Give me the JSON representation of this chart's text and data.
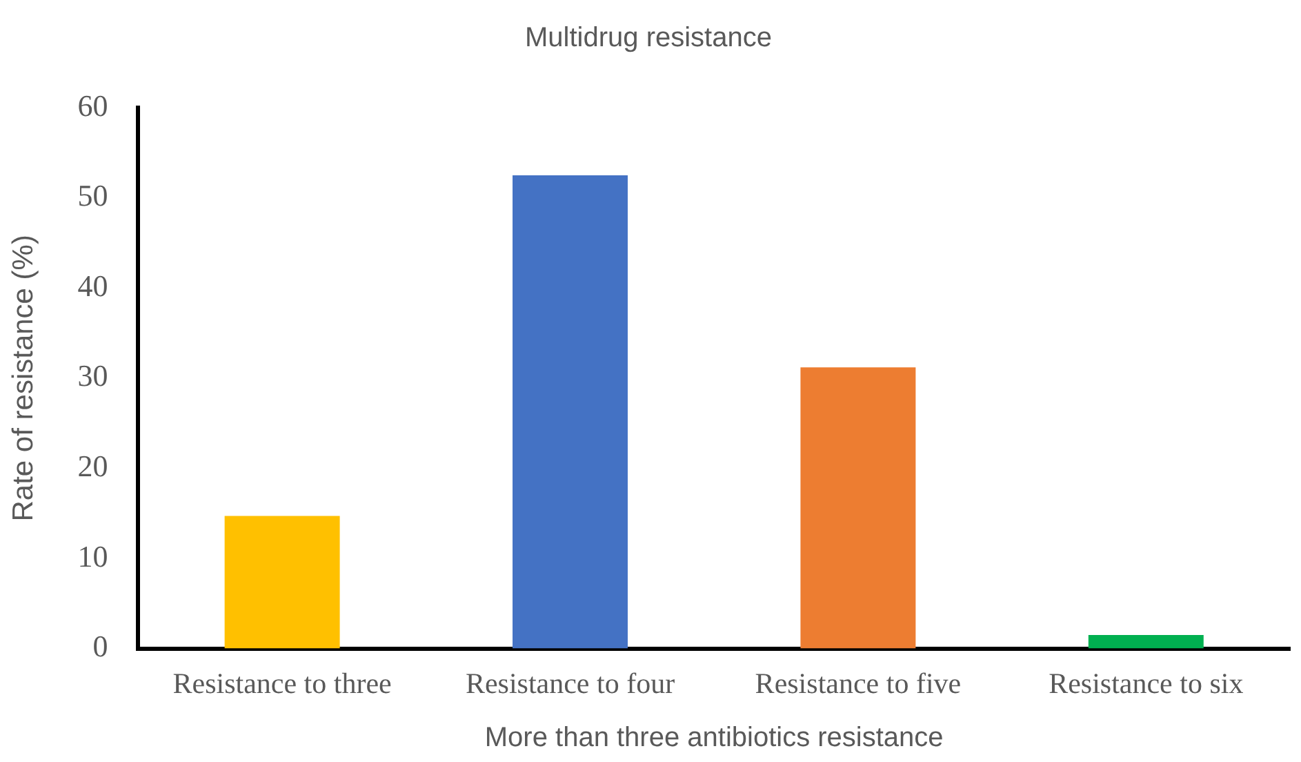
{
  "chart_data": {
    "type": "bar",
    "title": "Multidrug resistance",
    "xlabel": "More than three antibiotics resistance",
    "ylabel": "Rate of resistance (%)",
    "categories": [
      "Resistance to three",
      "Resistance to four",
      "Resistance to five",
      "Resistance to six"
    ],
    "values": [
      14.7,
      52.5,
      31.2,
      1.5
    ],
    "colors": [
      "#ffc000",
      "#4472c4",
      "#ed7d31",
      "#00b050"
    ],
    "ylim": [
      0,
      60
    ],
    "yticks": [
      0,
      10,
      20,
      30,
      40,
      50,
      60
    ],
    "grid": false,
    "legend": false
  }
}
